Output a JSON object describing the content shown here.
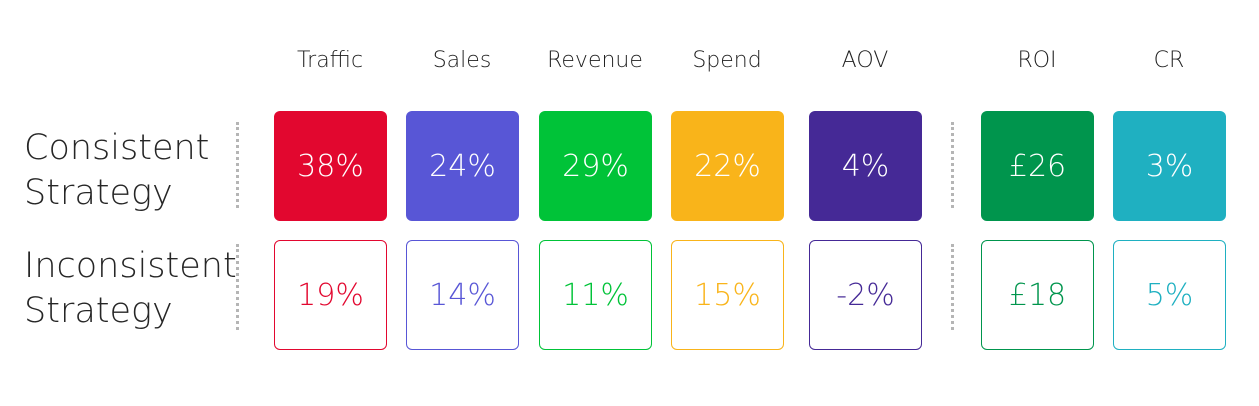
{
  "metrics": [
    {
      "name": "Traffic",
      "color": "#e2072f"
    },
    {
      "name": "Sales",
      "color": "#5856d6"
    },
    {
      "name": "Revenue",
      "color": "#00c338"
    },
    {
      "name": "Spend",
      "color": "#f9b41a"
    },
    {
      "name": "AOV",
      "color": "#452996"
    },
    {
      "name": "ROI",
      "color": "#00954d"
    },
    {
      "name": "CR",
      "color": "#1fb0c1"
    }
  ],
  "rows": [
    {
      "label_line1": "Consistent",
      "label_line2": "Strategy",
      "style": "filled",
      "values": [
        "38%",
        "24%",
        "29%",
        "22%",
        "4%",
        "£26",
        "3%"
      ]
    },
    {
      "label_line1": "Inconsistent",
      "label_line2": "Strategy",
      "style": "outline",
      "values": [
        "19%",
        "14%",
        "11%",
        "15%",
        "-2%",
        "£18",
        "5%"
      ]
    }
  ],
  "chart_data": {
    "type": "table",
    "columns": [
      "Traffic",
      "Sales",
      "Revenue",
      "Spend",
      "AOV",
      "ROI",
      "CR"
    ],
    "rows": [
      {
        "name": "Consistent Strategy",
        "values": [
          "38%",
          "24%",
          "29%",
          "22%",
          "4%",
          "£26",
          "3%"
        ]
      },
      {
        "name": "Inconsistent Strategy",
        "values": [
          "19%",
          "14%",
          "11%",
          "15%",
          "-2%",
          "£18",
          "5%"
        ]
      }
    ]
  }
}
